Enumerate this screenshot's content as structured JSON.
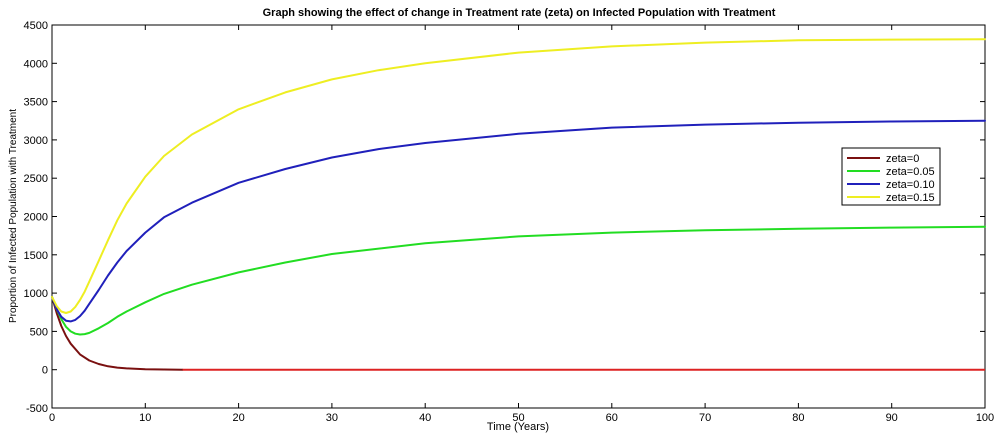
{
  "chart_data": {
    "type": "line",
    "title": "Graph showing the effect of change in Treatment rate (zeta) on Infected Population with Treatment",
    "xlabel": "Time (Years)",
    "ylabel": "Proportion of Infected Population with Treatment",
    "xlim": [
      0,
      100
    ],
    "ylim": [
      -500,
      4500
    ],
    "xticks": [
      "0",
      "10",
      "20",
      "30",
      "40",
      "50",
      "60",
      "70",
      "80",
      "90",
      "100"
    ],
    "yticks": [
      "-500",
      "0",
      "500",
      "1000",
      "1500",
      "2000",
      "2500",
      "3000",
      "3500",
      "4000",
      "4500"
    ],
    "grid": false,
    "legend_position": "right",
    "series": [
      {
        "name": "zeta=0",
        "color": "#7a1010",
        "x": [
          0,
          0.5,
          1,
          1.5,
          2,
          3,
          4,
          5,
          6,
          7,
          8,
          10,
          12,
          14
        ],
        "y": [
          950,
          740,
          570,
          440,
          340,
          200,
          120,
          75,
          45,
          28,
          17,
          6,
          2,
          0
        ]
      },
      {
        "name": "zeta=0.05",
        "color": "#22dd22",
        "x": [
          0,
          0.5,
          1,
          1.5,
          2,
          2.5,
          3,
          3.5,
          4,
          5,
          6,
          7,
          8,
          10,
          12,
          15,
          20,
          25,
          30,
          40,
          50,
          60,
          70,
          80,
          90,
          100
        ],
        "y": [
          950,
          790,
          660,
          560,
          500,
          470,
          460,
          465,
          480,
          540,
          610,
          690,
          760,
          880,
          990,
          1110,
          1270,
          1400,
          1510,
          1650,
          1740,
          1790,
          1820,
          1840,
          1855,
          1865
        ]
      },
      {
        "name": "zeta=0.10",
        "color": "#2020bb",
        "x": [
          0,
          0.5,
          1,
          1.5,
          2,
          2.5,
          3,
          3.5,
          4,
          5,
          6,
          7,
          8,
          10,
          12,
          15,
          20,
          25,
          30,
          35,
          40,
          50,
          60,
          70,
          80,
          90,
          100
        ],
        "y": [
          950,
          790,
          690,
          640,
          630,
          650,
          700,
          770,
          860,
          1040,
          1230,
          1400,
          1550,
          1790,
          1990,
          2180,
          2440,
          2620,
          2770,
          2880,
          2960,
          3080,
          3160,
          3200,
          3225,
          3240,
          3250
        ]
      },
      {
        "name": "zeta=0.15",
        "color": "#eeee22",
        "x": [
          0,
          0.5,
          1,
          1.5,
          2,
          2.5,
          3,
          3.5,
          4,
          5,
          6,
          7,
          8,
          10,
          12,
          15,
          20,
          25,
          30,
          35,
          40,
          50,
          60,
          70,
          80,
          90,
          100
        ],
        "y": [
          950,
          830,
          760,
          740,
          760,
          820,
          910,
          1020,
          1150,
          1420,
          1690,
          1950,
          2170,
          2520,
          2790,
          3070,
          3400,
          3620,
          3790,
          3910,
          4000,
          4140,
          4220,
          4270,
          4300,
          4310,
          4315
        ]
      }
    ]
  }
}
